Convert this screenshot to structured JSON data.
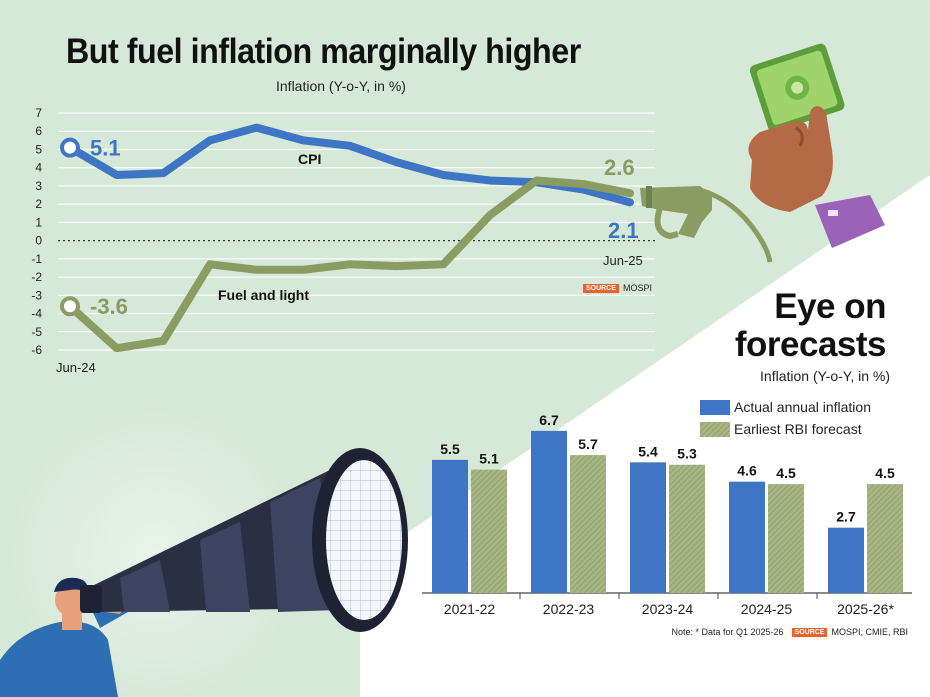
{
  "top": {
    "title": "But fuel inflation marginally higher",
    "subtitle": "Inflation (Y-o-Y, in %)",
    "source_label": "SOURCE",
    "source_text": "MOSPI"
  },
  "bottom": {
    "title_line1": "Eye on",
    "title_line2": "forecasts",
    "subtitle": "Inflation (Y-o-Y, in %)",
    "note": "Note: * Data for Q1 2025-26",
    "source_label": "SOURCE",
    "source_text": "MOSPI, CMIE, RBI"
  },
  "colors": {
    "cpi": "#3f75c5",
    "fuel": "#8a9c62",
    "actual": "#3f75c5",
    "forecast": "#9aa876",
    "background": "#d6e8d8"
  },
  "chart_data": [
    {
      "type": "line",
      "title": "But fuel inflation marginally higher",
      "ylabel": "Inflation (Y-o-Y, in %)",
      "ylim": [
        -6,
        7
      ],
      "yticks": [
        "7",
        "6",
        "5",
        "4",
        "3",
        "2",
        "1",
        "0",
        "-1",
        "-2",
        "-3",
        "-4",
        "-5",
        "-6"
      ],
      "x_start_label": "Jun-24",
      "x_end_label": "Jun-25",
      "series": [
        {
          "name": "CPI",
          "values": [
            5.1,
            3.6,
            3.7,
            5.5,
            6.2,
            5.5,
            5.2,
            4.3,
            3.6,
            3.3,
            3.2,
            2.8,
            2.1
          ],
          "start_label": "5.1",
          "end_label": "2.1"
        },
        {
          "name": "Fuel and light",
          "values": [
            -3.6,
            -5.9,
            -5.5,
            -1.3,
            -1.6,
            -1.6,
            -1.3,
            -1.4,
            -1.3,
            1.4,
            3.3,
            3.1,
            2.6
          ],
          "start_label": "-3.6",
          "end_label": "2.6"
        }
      ]
    },
    {
      "type": "bar",
      "title": "Eye on forecasts",
      "ylabel": "Inflation (Y-o-Y, in %)",
      "ylim": [
        0,
        7
      ],
      "categories": [
        "2021-22",
        "2022-23",
        "2023-24",
        "2024-25",
        "2025-26*"
      ],
      "series": [
        {
          "name": "Actual annual inflation",
          "values": [
            5.5,
            6.7,
            5.4,
            4.6,
            2.7
          ],
          "labels": [
            "5.5",
            "6.7",
            "5.4",
            "4.6",
            "2.7"
          ]
        },
        {
          "name": "Earliest RBI forecast",
          "values": [
            5.1,
            5.7,
            5.3,
            4.5,
            4.5
          ],
          "labels": [
            "5.1",
            "5.7",
            "5.3",
            "4.5",
            "4.5"
          ]
        }
      ]
    }
  ]
}
